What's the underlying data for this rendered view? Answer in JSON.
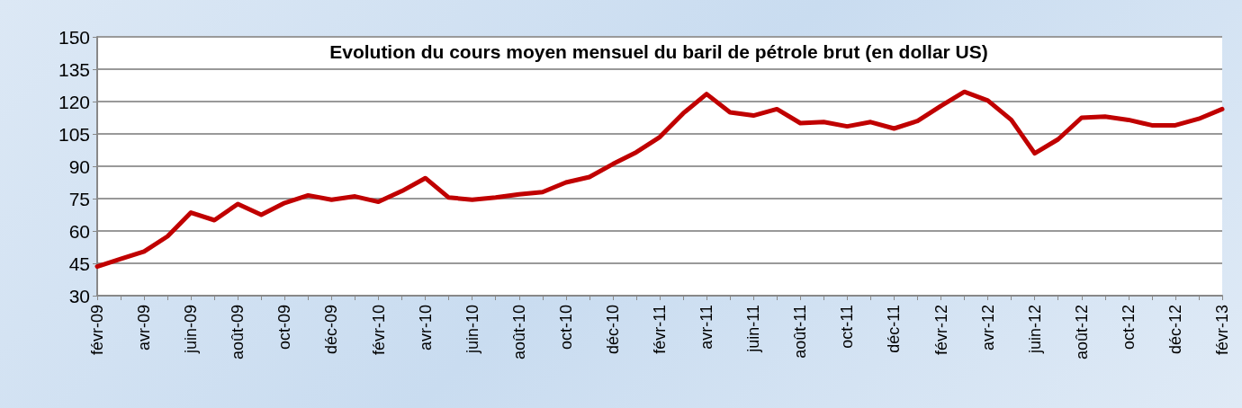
{
  "chart_data": {
    "type": "line",
    "title": "Evolution du cours moyen mensuel du baril de pétrole brut (en dollar US)",
    "categories": [
      "févr-09",
      null,
      "avr-09",
      null,
      "juin-09",
      null,
      "août-09",
      null,
      "oct-09",
      null,
      "déc-09",
      null,
      "févr-10",
      null,
      "avr-10",
      null,
      "juin-10",
      null,
      "août-10",
      null,
      "oct-10",
      null,
      "déc-10",
      null,
      "févr-11",
      null,
      "avr-11",
      null,
      "juin-11",
      null,
      "août-11",
      null,
      "oct-11",
      null,
      "déc-11",
      null,
      "févr-12",
      null,
      "avr-12",
      null,
      "juin-12",
      null,
      "août-12",
      null,
      "oct-12",
      null,
      "déc-12",
      null,
      "févr-13"
    ],
    "series": [
      {
        "color": "#c00000",
        "values": [
          43.5,
          47,
          50.5,
          57.5,
          68.5,
          65,
          72.5,
          67.5,
          73,
          76.5,
          74.5,
          76,
          73.5,
          78.5,
          84.5,
          75.5,
          74.5,
          75.5,
          77,
          78,
          82.5,
          85,
          91,
          96.5,
          103.5,
          114.5,
          123.5,
          115,
          113.5,
          116.5,
          110,
          110.5,
          108.5,
          110.5,
          107.5,
          111,
          118,
          124.5,
          120.5,
          111.5,
          96,
          102.5,
          112.5,
          113,
          111.5,
          109,
          109,
          112,
          116.5
        ]
      }
    ],
    "ylim": [
      30,
      150
    ],
    "yticks": [
      30,
      45,
      60,
      75,
      90,
      105,
      120,
      135,
      150
    ],
    "grid": "y",
    "marker": "none",
    "line_style": "solid"
  }
}
